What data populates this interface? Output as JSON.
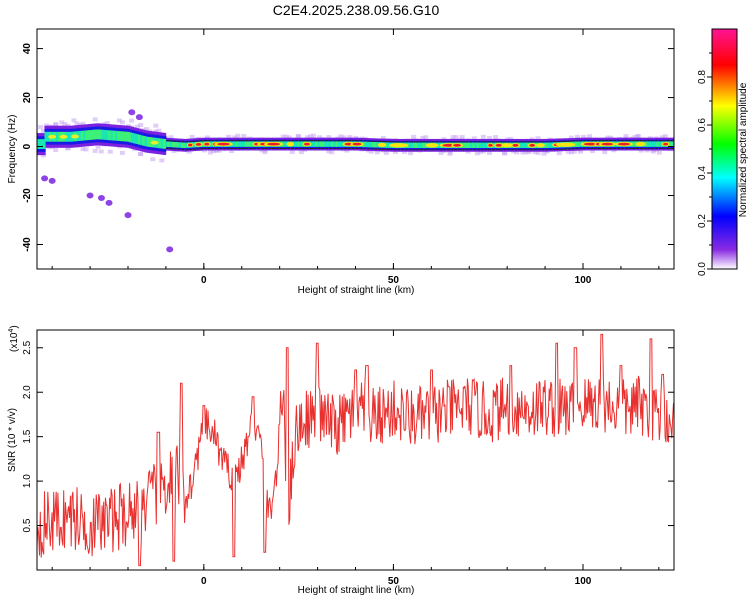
{
  "title": "C2E4.2025.238.09.56.G10",
  "chart_data": [
    {
      "type": "heatmap",
      "xlabel": "Height of straight line (km)",
      "ylabel": "Frequency (Hz)",
      "xlim": [
        -44,
        124
      ],
      "ylim": [
        -50,
        48
      ],
      "xticks": [
        0,
        50,
        100
      ],
      "yticks": [
        40,
        20,
        0,
        -20,
        -40
      ],
      "colorbar": {
        "label": "Normalized spectral amplitude",
        "range": [
          0.0,
          1.0
        ],
        "ticks": [
          "0.0",
          "0.2",
          "0.4",
          "0.6",
          "0.8"
        ],
        "tick_values": [
          0.0,
          0.2,
          0.4,
          0.6,
          0.8
        ],
        "colors": [
          "#ffffff",
          "#8a2be2",
          "#0000ff",
          "#00ffff",
          "#00ff00",
          "#ffff00",
          "#ff0000",
          "#ff1493"
        ]
      },
      "ridge": {
        "description_points_x": [
          -42,
          -35,
          -28,
          -20,
          -15,
          -10,
          -5,
          0,
          10,
          20,
          30,
          40,
          50,
          60,
          70,
          80,
          90,
          100,
          110,
          124
        ],
        "frequency_hz": [
          4,
          4,
          5,
          4,
          2,
          1,
          0.5,
          1,
          1,
          1,
          1,
          1,
          0.5,
          0.5,
          0.5,
          0.5,
          0.5,
          1,
          1,
          1
        ]
      },
      "scattered_points": [
        {
          "x": -42,
          "y": -13
        },
        {
          "x": -40,
          "y": -14
        },
        {
          "x": -30,
          "y": -20
        },
        {
          "x": -27,
          "y": -21
        },
        {
          "x": -25,
          "y": -23
        },
        {
          "x": -20,
          "y": -28
        },
        {
          "x": -19,
          "y": 14
        },
        {
          "x": -17,
          "y": 12
        },
        {
          "x": -9,
          "y": -42
        }
      ]
    },
    {
      "type": "line",
      "xlabel": "Height of straight line (km)",
      "ylabel": "SNR (10 * v/v)",
      "yscale_label": "(x10",
      "yscale_exp": "4",
      "yscale_close": ")",
      "xlim": [
        -44,
        124
      ],
      "ylim": [
        0,
        2.7
      ],
      "xticks": [
        0,
        50,
        100
      ],
      "yticks": [
        "0.5",
        "1.0",
        "1.5",
        "2.0",
        "2.5"
      ],
      "ytick_values": [
        0.5,
        1.0,
        1.5,
        2.0,
        2.5
      ],
      "color": "#e8302e",
      "anchors_x": [
        -44,
        -40,
        -35,
        -30,
        -25,
        -20,
        -15,
        -10,
        -7,
        -5,
        -3,
        0,
        3,
        5,
        8,
        10,
        13,
        15,
        17,
        19,
        21,
        22,
        24,
        26,
        30,
        35,
        40,
        45,
        50,
        55,
        60,
        65,
        70,
        75,
        80,
        85,
        90,
        95,
        100,
        105,
        110,
        115,
        120,
        124
      ],
      "anchors_y": [
        0.5,
        0.55,
        0.6,
        0.5,
        0.55,
        0.65,
        0.75,
        0.95,
        1.1,
        0.8,
        1.0,
        1.65,
        1.5,
        1.2,
        1.05,
        1.2,
        1.7,
        1.4,
        0.6,
        1.0,
        2.1,
        0.5,
        1.5,
        1.7,
        1.75,
        1.6,
        1.8,
        1.7,
        1.8,
        1.7,
        1.75,
        1.8,
        1.85,
        1.75,
        1.85,
        1.8,
        1.85,
        1.8,
        1.85,
        1.9,
        1.8,
        1.85,
        1.75,
        1.7
      ],
      "noise_amplitude": 0.35,
      "spikes": [
        {
          "x": -12,
          "y": 1.55
        },
        {
          "x": -6,
          "y": 2.1
        },
        {
          "x": 0,
          "y": 1.85
        },
        {
          "x": 13,
          "y": 1.95
        },
        {
          "x": 22,
          "y": 2.5
        },
        {
          "x": 30,
          "y": 2.55
        },
        {
          "x": 40,
          "y": 2.25
        },
        {
          "x": 43,
          "y": 2.3
        },
        {
          "x": 60,
          "y": 2.25
        },
        {
          "x": 81,
          "y": 2.3
        },
        {
          "x": 93,
          "y": 2.55
        },
        {
          "x": 98,
          "y": 2.5
        },
        {
          "x": 105,
          "y": 2.65
        },
        {
          "x": 110,
          "y": 2.3
        },
        {
          "x": 118,
          "y": 2.6
        },
        {
          "x": 121,
          "y": 2.2
        },
        {
          "x": -17,
          "y": 0.05
        },
        {
          "x": -8,
          "y": 0.1
        },
        {
          "x": 8,
          "y": 0.15
        },
        {
          "x": 16,
          "y": 0.2
        }
      ]
    }
  ]
}
